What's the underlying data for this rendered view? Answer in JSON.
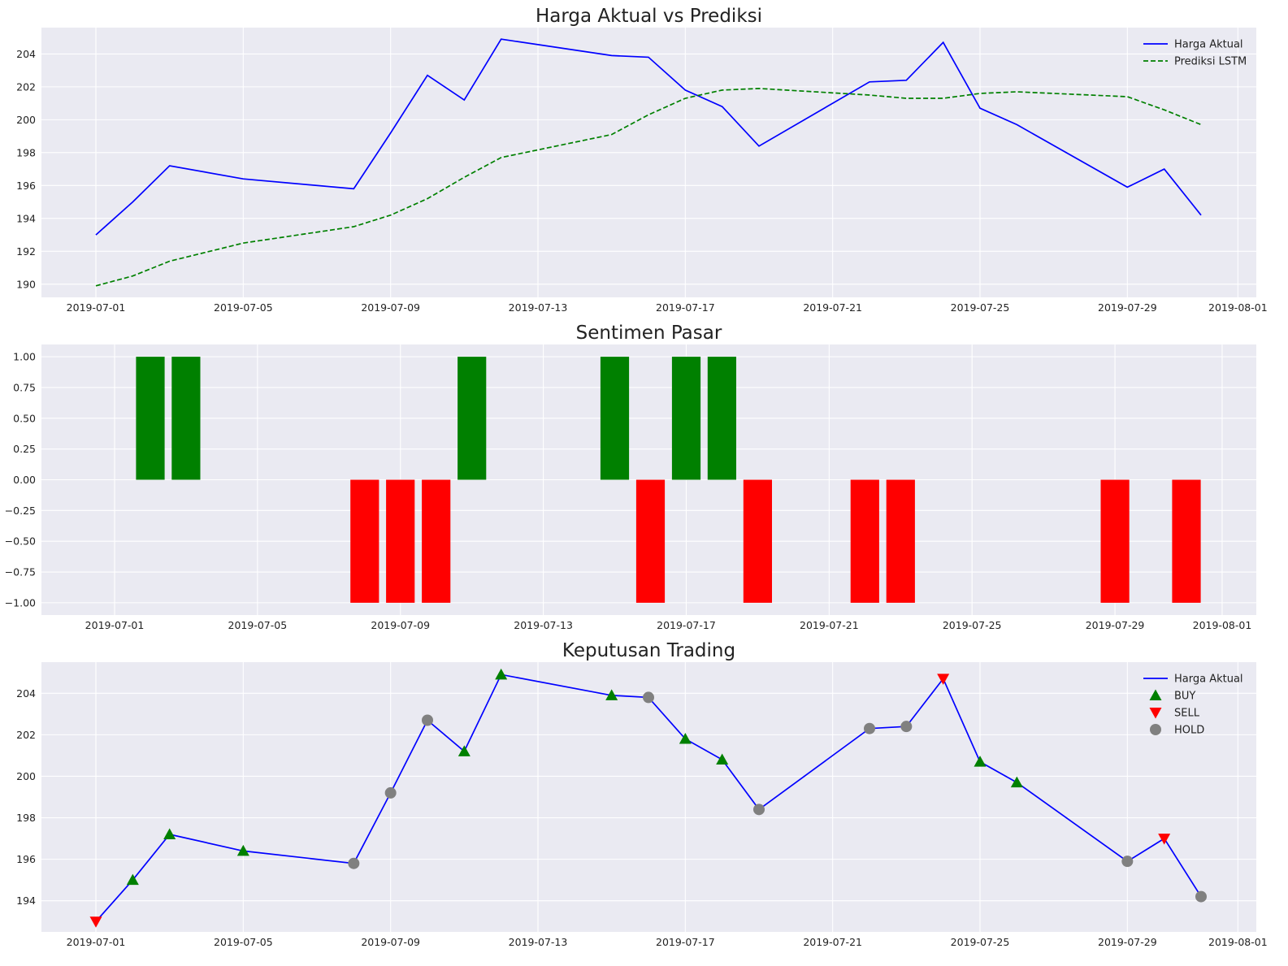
{
  "colors": {
    "panel_bg": "#eaeaf2",
    "actual": "#0000ff",
    "predicted": "#008000",
    "positive": "#008000",
    "negative": "#ff0000",
    "buy": "#008000",
    "sell": "#ff0000",
    "hold": "#808080"
  },
  "chart_data": [
    {
      "type": "line",
      "title": "Harga Aktual vs Prediksi",
      "xlabel": "",
      "ylabel": "",
      "legend_position": "top-right",
      "grid": true,
      "xlim": [
        "2019-06-28",
        "2019-08-01"
      ],
      "ylim": [
        189.2,
        205.6
      ],
      "x_ticks": [
        "2019-07-01",
        "2019-07-05",
        "2019-07-09",
        "2019-07-13",
        "2019-07-17",
        "2019-07-21",
        "2019-07-25",
        "2019-07-29",
        "2019-08-01"
      ],
      "y_ticks": [
        190,
        192,
        194,
        196,
        198,
        200,
        202,
        204
      ],
      "series": [
        {
          "name": "Harga Aktual",
          "style": "solid",
          "x": [
            "2019-07-01",
            "2019-07-02",
            "2019-07-03",
            "2019-07-05",
            "2019-07-08",
            "2019-07-09",
            "2019-07-10",
            "2019-07-11",
            "2019-07-12",
            "2019-07-15",
            "2019-07-16",
            "2019-07-17",
            "2019-07-18",
            "2019-07-19",
            "2019-07-22",
            "2019-07-23",
            "2019-07-24",
            "2019-07-25",
            "2019-07-26",
            "2019-07-29",
            "2019-07-30",
            "2019-07-31"
          ],
          "values": [
            193.0,
            195.0,
            197.2,
            196.4,
            195.8,
            199.2,
            202.7,
            201.2,
            204.9,
            203.9,
            203.8,
            201.8,
            200.8,
            198.4,
            202.3,
            202.4,
            204.7,
            200.7,
            199.7,
            195.9,
            197.0,
            194.2
          ]
        },
        {
          "name": "Prediksi LSTM",
          "style": "dashed",
          "x": [
            "2019-07-01",
            "2019-07-02",
            "2019-07-03",
            "2019-07-05",
            "2019-07-08",
            "2019-07-09",
            "2019-07-10",
            "2019-07-11",
            "2019-07-12",
            "2019-07-15",
            "2019-07-16",
            "2019-07-17",
            "2019-07-18",
            "2019-07-19",
            "2019-07-22",
            "2019-07-23",
            "2019-07-24",
            "2019-07-25",
            "2019-07-26",
            "2019-07-29",
            "2019-07-30",
            "2019-07-31"
          ],
          "values": [
            189.9,
            190.5,
            191.4,
            192.5,
            193.5,
            194.2,
            195.2,
            196.5,
            197.7,
            199.1,
            200.3,
            201.3,
            201.8,
            201.9,
            201.5,
            201.3,
            201.3,
            201.6,
            201.7,
            201.4,
            200.6,
            199.7
          ]
        }
      ]
    },
    {
      "type": "bar",
      "title": "Sentimen Pasar",
      "xlabel": "",
      "ylabel": "",
      "grid": true,
      "xlim": [
        "2019-06-28",
        "2019-08-01"
      ],
      "ylim": [
        -1.1,
        1.1
      ],
      "x_ticks": [
        "2019-07-01",
        "2019-07-05",
        "2019-07-09",
        "2019-07-13",
        "2019-07-17",
        "2019-07-21",
        "2019-07-25",
        "2019-07-29",
        "2019-08-01"
      ],
      "y_ticks": [
        "1.00",
        "0.75",
        "0.50",
        "0.25",
        "0.00",
        "−0.25",
        "−0.50",
        "−0.75",
        "−1.00"
      ],
      "bar_width_days": 0.8,
      "x": [
        "2019-07-02",
        "2019-07-03",
        "2019-07-08",
        "2019-07-09",
        "2019-07-10",
        "2019-07-11",
        "2019-07-15",
        "2019-07-16",
        "2019-07-17",
        "2019-07-18",
        "2019-07-19",
        "2019-07-22",
        "2019-07-23",
        "2019-07-29",
        "2019-07-31"
      ],
      "values": [
        1,
        1,
        -1,
        -1,
        -1,
        1,
        1,
        -1,
        1,
        1,
        -1,
        -1,
        -1,
        -1,
        -1
      ]
    },
    {
      "type": "scatter",
      "title": "Keputusan Trading",
      "xlabel": "",
      "ylabel": "",
      "legend_position": "top-right",
      "grid": true,
      "xlim": [
        "2019-06-28",
        "2019-08-01"
      ],
      "ylim": [
        192.5,
        205.5
      ],
      "x_ticks": [
        "2019-07-01",
        "2019-07-05",
        "2019-07-09",
        "2019-07-13",
        "2019-07-17",
        "2019-07-21",
        "2019-07-25",
        "2019-07-29",
        "2019-08-01"
      ],
      "y_ticks": [
        194,
        196,
        198,
        200,
        202,
        204
      ],
      "line": {
        "name": "Harga Aktual",
        "x": [
          "2019-07-01",
          "2019-07-02",
          "2019-07-03",
          "2019-07-05",
          "2019-07-08",
          "2019-07-09",
          "2019-07-10",
          "2019-07-11",
          "2019-07-12",
          "2019-07-15",
          "2019-07-16",
          "2019-07-17",
          "2019-07-18",
          "2019-07-19",
          "2019-07-22",
          "2019-07-23",
          "2019-07-24",
          "2019-07-25",
          "2019-07-26",
          "2019-07-29",
          "2019-07-30",
          "2019-07-31"
        ],
        "values": [
          193.0,
          195.0,
          197.2,
          196.4,
          195.8,
          199.2,
          202.7,
          201.2,
          204.9,
          203.9,
          203.8,
          201.8,
          200.8,
          198.4,
          202.3,
          202.4,
          204.7,
          200.7,
          199.7,
          195.9,
          197.0,
          194.2
        ]
      },
      "series": [
        {
          "name": "BUY",
          "marker": "triangle-up",
          "x": [
            "2019-07-02",
            "2019-07-03",
            "2019-07-05",
            "2019-07-11",
            "2019-07-12",
            "2019-07-15",
            "2019-07-17",
            "2019-07-18",
            "2019-07-25",
            "2019-07-26"
          ],
          "values": [
            195.0,
            197.2,
            196.4,
            201.2,
            204.9,
            203.9,
            201.8,
            200.8,
            200.7,
            199.7
          ]
        },
        {
          "name": "SELL",
          "marker": "triangle-down",
          "x": [
            "2019-07-01",
            "2019-07-24",
            "2019-07-30"
          ],
          "values": [
            193.0,
            204.7,
            197.0
          ]
        },
        {
          "name": "HOLD",
          "marker": "circle",
          "x": [
            "2019-07-08",
            "2019-07-09",
            "2019-07-10",
            "2019-07-16",
            "2019-07-19",
            "2019-07-22",
            "2019-07-23",
            "2019-07-29",
            "2019-07-31"
          ],
          "values": [
            195.8,
            199.2,
            202.7,
            203.8,
            198.4,
            202.3,
            202.4,
            195.9,
            194.2
          ]
        }
      ]
    }
  ]
}
